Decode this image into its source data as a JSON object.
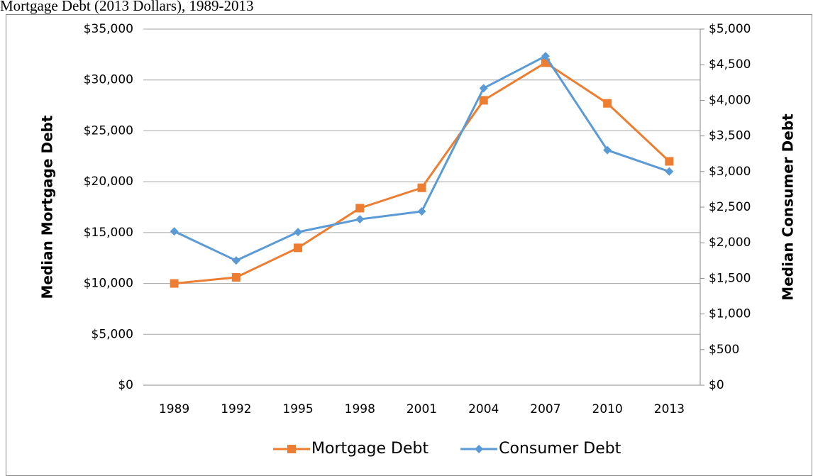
{
  "chart_data": {
    "type": "line",
    "title": "Mortgage Debt (2013 Dollars), 1989-2013",
    "y_label": "Median Mortgage Debt",
    "y2_label": "Median Consumer Debt",
    "categories": [
      "1989",
      "1992",
      "1995",
      "1998",
      "2001",
      "2004",
      "2007",
      "2010",
      "2013"
    ],
    "series": [
      {
        "name": "Mortgage Debt",
        "color": "#ed7d31",
        "marker": "square",
        "values": [
          10000,
          10600,
          13500,
          17400,
          19400,
          28000,
          31700,
          27700,
          22000
        ]
      },
      {
        "name": "Consumer Debt",
        "color": "#5b9bd5",
        "marker": "diamond",
        "axis": "y2",
        "values": [
          2160,
          1750,
          2150,
          2330,
          2440,
          4170,
          4620,
          3300,
          3000
        ]
      }
    ],
    "ylim": [
      0,
      35000
    ],
    "yticks": [
      {
        "value": 0,
        "label": "$0"
      },
      {
        "value": 5000,
        "label": "$5,000"
      },
      {
        "value": 10000,
        "label": "$10,000"
      },
      {
        "value": 15000,
        "label": "$15,000"
      },
      {
        "value": 20000,
        "label": "$20,000"
      },
      {
        "value": 25000,
        "label": "$25,000"
      },
      {
        "value": 30000,
        "label": "$30,000"
      },
      {
        "value": 35000,
        "label": "$35,000"
      }
    ],
    "y2lim": [
      0,
      5000
    ],
    "y2ticks": [
      {
        "value": 0,
        "label": "$0"
      },
      {
        "value": 500,
        "label": "$500"
      },
      {
        "value": 1000,
        "label": "$1,000"
      },
      {
        "value": 1500,
        "label": "$1,500"
      },
      {
        "value": 2000,
        "label": "$2,000"
      },
      {
        "value": 2500,
        "label": "$2,500"
      },
      {
        "value": 3000,
        "label": "$3,000"
      },
      {
        "value": 3500,
        "label": "$3,500"
      },
      {
        "value": 4000,
        "label": "$4,000"
      },
      {
        "value": 4500,
        "label": "$4,500"
      },
      {
        "value": 5000,
        "label": "$5,000"
      }
    ],
    "grid": true,
    "legend": "bottom"
  }
}
